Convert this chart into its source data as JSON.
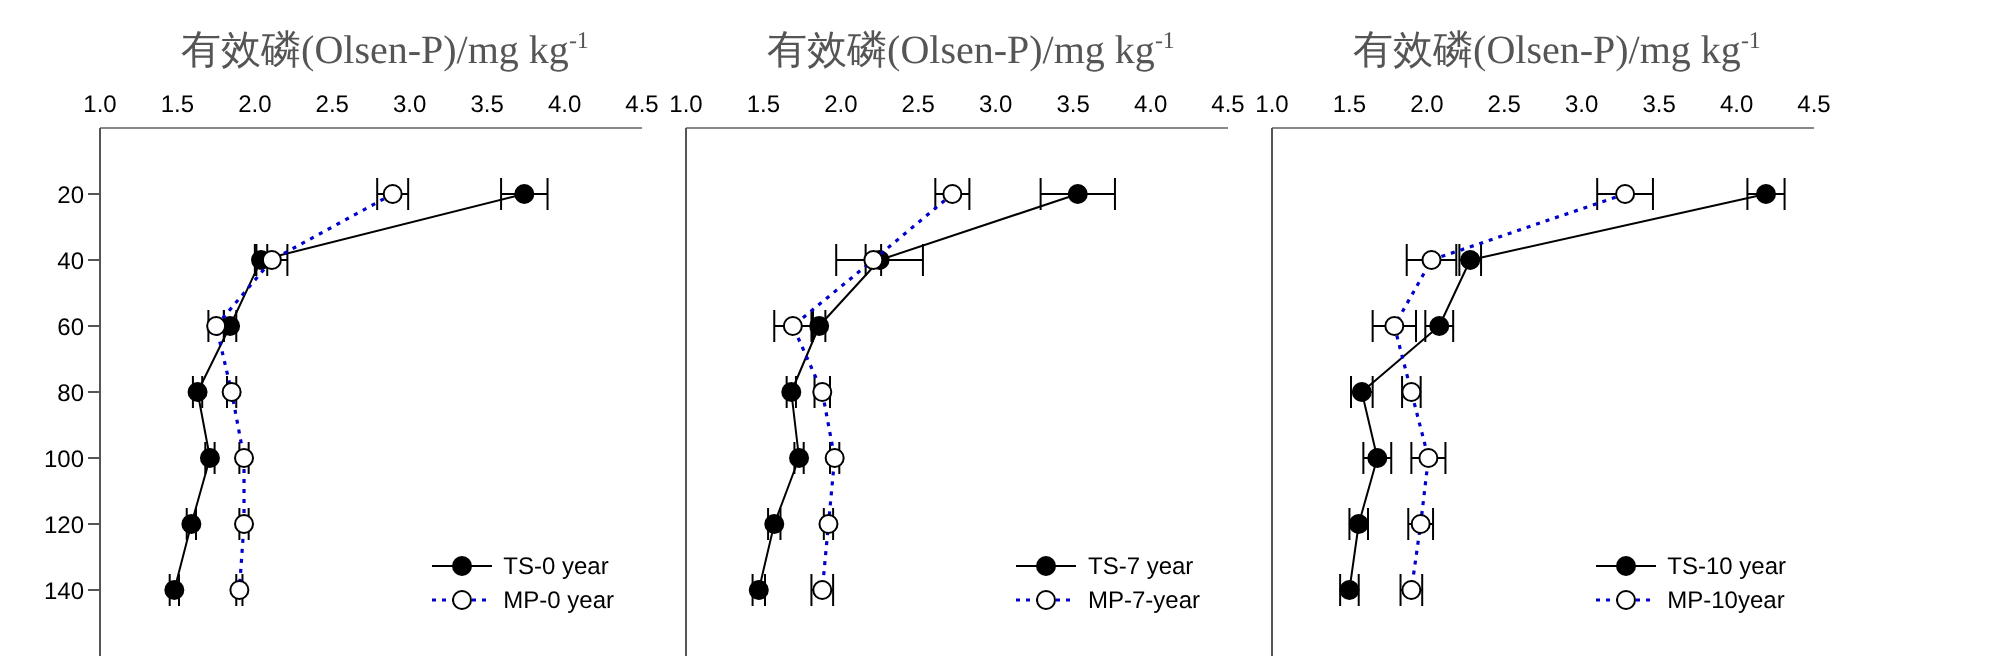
{
  "chart_data": [
    {
      "type": "line",
      "xlabel": "有效磷(Olsen-P)/mg kg$^{-1}$",
      "xlim": [
        1.0,
        4.5
      ],
      "xticks": [
        {
          "value": 1,
          "label": "1.0"
        },
        1.5,
        {
          "value": 2,
          "label": "2.0"
        },
        2.5,
        {
          "value": 3,
          "label": "3.0"
        },
        3.5,
        {
          "value": 4,
          "label": "4.0"
        },
        4.5
      ],
      "ylim": [
        160,
        0
      ],
      "yticks": [
        20,
        40,
        60,
        80,
        100,
        120,
        140
      ],
      "legend": "bottom right",
      "marker": "circle",
      "series": [
        {
          "name": "TS-0 year",
          "color": "#000000",
          "line_style": "solid",
          "x": [
            3.74,
            2.04,
            1.84,
            1.63,
            1.71,
            1.59,
            1.48
          ],
          "values": [
            20,
            40,
            60,
            80,
            100,
            120,
            140
          ],
          "xerrors": [
            0.15,
            0.04,
            0.04,
            0.03,
            0.03,
            0.03,
            0.03
          ]
        },
        {
          "name": "MP-0 year",
          "color": "#0000cc",
          "line_style": "dotted",
          "x": [
            2.89,
            2.11,
            1.75,
            1.85,
            1.93,
            1.93,
            1.9
          ],
          "values": [
            20,
            40,
            60,
            80,
            100,
            120,
            140
          ],
          "xerrors": [
            0.1,
            0.1,
            0.05,
            0.03,
            0.03,
            0.03,
            0.02
          ]
        }
      ]
    },
    {
      "type": "line",
      "xlabel": "有效磷(Olsen-P)/mg kg$^{-1}$",
      "xlim": [
        1.0,
        4.5
      ],
      "xticks": [
        {
          "value": 1,
          "label": "1.0"
        },
        1.5,
        {
          "value": 2,
          "label": "2.0"
        },
        2.5,
        {
          "value": 3,
          "label": "3.0"
        },
        3.5,
        {
          "value": 4,
          "label": "4.0"
        },
        4.5
      ],
      "ylim": [
        160,
        0
      ],
      "yticks": [
        20,
        40,
        60,
        80,
        100,
        120,
        140
      ],
      "tick_labels": "x",
      "legend": "bottom right",
      "marker": "circle",
      "series": [
        {
          "name": "TS-7 year",
          "color": "#000000",
          "line_style": "solid",
          "x": [
            3.53,
            2.25,
            1.86,
            1.68,
            1.73,
            1.57,
            1.47
          ],
          "values": [
            20,
            40,
            60,
            80,
            100,
            120,
            140
          ],
          "xerrors": [
            0.24,
            0.28,
            0.04,
            0.03,
            0.03,
            0.04,
            0.04
          ]
        },
        {
          "name": "MP-7-year",
          "color": "#0000cc",
          "line_style": "dotted",
          "x": [
            2.72,
            2.21,
            1.69,
            1.88,
            1.96,
            1.92,
            1.88
          ],
          "values": [
            20,
            40,
            60,
            80,
            100,
            120,
            140
          ],
          "xerrors": [
            0.11,
            0.05,
            0.12,
            0.05,
            0.03,
            0.03,
            0.07
          ]
        }
      ]
    },
    {
      "type": "line",
      "xlabel": "有效磷(Olsen-P)/mg kg$^{-1}$",
      "xlim": [
        1.0,
        4.5
      ],
      "xticks": [
        {
          "value": 1,
          "label": "1.0"
        },
        1.5,
        {
          "value": 2,
          "label": "2.0"
        },
        2.5,
        {
          "value": 3,
          "label": "3.0"
        },
        3.5,
        {
          "value": 4,
          "label": "4.0"
        },
        4.5
      ],
      "ylim": [
        160,
        0
      ],
      "yticks": [
        20,
        40,
        60,
        80,
        100,
        120,
        140
      ],
      "tick_labels": "x",
      "legend": "bottom right",
      "marker": "circle",
      "series": [
        {
          "name": "TS-10 year",
          "color": "#000000",
          "line_style": "solid",
          "x": [
            4.19,
            2.28,
            2.08,
            1.58,
            1.68,
            1.56,
            1.5
          ],
          "values": [
            20,
            40,
            60,
            80,
            100,
            120,
            140
          ],
          "xerrors": [
            0.12,
            0.07,
            0.09,
            0.07,
            0.09,
            0.06,
            0.06
          ]
        },
        {
          "name": "MP-10year",
          "color": "#0000cc",
          "line_style": "dotted",
          "x": [
            3.28,
            2.03,
            1.79,
            1.9,
            2.01,
            1.96,
            1.9
          ],
          "values": [
            20,
            40,
            60,
            80,
            100,
            120,
            140
          ],
          "xerrors": [
            0.18,
            0.16,
            0.14,
            0.06,
            0.11,
            0.08,
            0.07
          ]
        }
      ]
    }
  ]
}
